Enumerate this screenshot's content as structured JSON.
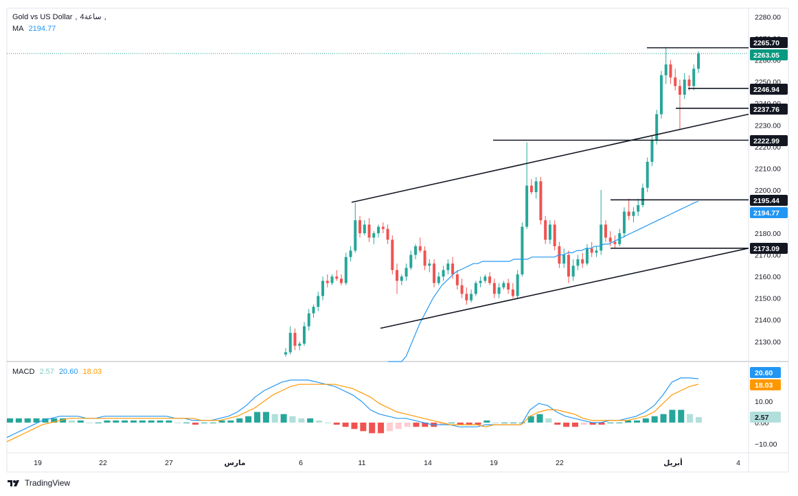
{
  "header": {
    "symbol": "Gold vs US Dollar",
    "interval": "4ساعة",
    "separator": ",",
    "ma_label": "MA",
    "ma_value": "2194.77"
  },
  "macd_legend": {
    "label": "MACD",
    "hist": "2.57",
    "macd": "20.60",
    "signal": "18.03"
  },
  "attribution": "TradingView",
  "colors": {
    "up": "#26a69a",
    "down": "#ef5350",
    "ma": "#2196f3",
    "macd_line": "#2196f3",
    "signal_line": "#ff9800",
    "hist_pos_strong": "#26a69a",
    "hist_pos_weak": "#b2dfdb",
    "hist_neg_strong": "#ef5350",
    "hist_neg_weak": "#ffcdd2",
    "tag_dark": "#131722",
    "last_price": "#089981"
  },
  "chart_data": [
    {
      "type": "candlestick",
      "title": "Gold vs US Dollar, 4ساعة",
      "ylim": [
        2120,
        2283
      ],
      "y_ticks": [
        2130,
        2140,
        2150,
        2160,
        2170,
        2180,
        2190,
        2200,
        2210,
        2220,
        2230,
        2240,
        2250,
        2260,
        2270,
        2280
      ],
      "x_ticks": [
        "19",
        "22",
        "27",
        "مارس",
        "6",
        "11",
        "14",
        "19",
        "22",
        "أبريل",
        "4"
      ],
      "price_tags": [
        "2265.70",
        "2263.05",
        "2246.94",
        "2237.76",
        "2222.99",
        "2195.44",
        "2194.77",
        "2173.09"
      ],
      "last_price": 2263.05,
      "ma_value": 2194.77,
      "horizontal_levels": [
        2265.7,
        2246.94,
        2237.76,
        2222.99,
        2195.44,
        2173.09
      ],
      "channel": {
        "upper": [
          [
            0,
            2194.3
          ],
          [
            1,
            2235
          ]
        ],
        "lower": [
          [
            0,
            2136.1
          ],
          [
            1,
            2173.09
          ]
        ]
      },
      "candles": [
        [
          2124,
          2127,
          2123,
          2125
        ],
        [
          2125,
          2137,
          2124,
          2134
        ],
        [
          2134,
          2136,
          2126,
          2128
        ],
        [
          2128,
          2130,
          2126,
          2129
        ],
        [
          2129,
          2139,
          2128,
          2137
        ],
        [
          2137,
          2145,
          2135,
          2143
        ],
        [
          2143,
          2147,
          2141,
          2146
        ],
        [
          2146,
          2153,
          2144,
          2151
        ],
        [
          2151,
          2160,
          2149,
          2158
        ],
        [
          2158,
          2161,
          2155,
          2157
        ],
        [
          2157,
          2161,
          2156,
          2160
        ],
        [
          2160,
          2163,
          2158,
          2159
        ],
        [
          2159,
          2161,
          2156,
          2157
        ],
        [
          2157,
          2171,
          2156,
          2169
        ],
        [
          2169,
          2174,
          2167,
          2172
        ],
        [
          2172,
          2194,
          2171,
          2186
        ],
        [
          2186,
          2188,
          2178,
          2180
        ],
        [
          2180,
          2186,
          2179,
          2184
        ],
        [
          2184,
          2187,
          2176,
          2178
        ],
        [
          2178,
          2181,
          2175,
          2180
        ],
        [
          2180,
          2184,
          2178,
          2183
        ],
        [
          2183,
          2185,
          2180,
          2182
        ],
        [
          2182,
          2184,
          2175,
          2177
        ],
        [
          2177,
          2179,
          2161,
          2163
        ],
        [
          2163,
          2166,
          2152,
          2158
        ],
        [
          2158,
          2161,
          2156,
          2160
        ],
        [
          2160,
          2166,
          2158,
          2164
        ],
        [
          2164,
          2172,
          2163,
          2170
        ],
        [
          2170,
          2175,
          2168,
          2174
        ],
        [
          2174,
          2178,
          2171,
          2172
        ],
        [
          2172,
          2174,
          2163,
          2165
        ],
        [
          2165,
          2168,
          2162,
          2166
        ],
        [
          2166,
          2168,
          2155,
          2157
        ],
        [
          2157,
          2162,
          2156,
          2160
        ],
        [
          2160,
          2165,
          2158,
          2163
        ],
        [
          2163,
          2168,
          2161,
          2166
        ],
        [
          2166,
          2169,
          2159,
          2161
        ],
        [
          2161,
          2163,
          2154,
          2156
        ],
        [
          2156,
          2159,
          2150,
          2152
        ],
        [
          2152,
          2155,
          2147,
          2149
        ],
        [
          2149,
          2154,
          2148,
          2152
        ],
        [
          2152,
          2158,
          2151,
          2157
        ],
        [
          2157,
          2160,
          2155,
          2158
        ],
        [
          2158,
          2161,
          2157,
          2160
        ],
        [
          2160,
          2162,
          2156,
          2157
        ],
        [
          2157,
          2159,
          2150,
          2152
        ],
        [
          2152,
          2157,
          2150,
          2155
        ],
        [
          2155,
          2158,
          2154,
          2157
        ],
        [
          2157,
          2159,
          2152,
          2154
        ],
        [
          2154,
          2157,
          2150,
          2151
        ],
        [
          2151,
          2163,
          2150,
          2161
        ],
        [
          2161,
          2185,
          2160,
          2183
        ],
        [
          2183,
          2222,
          2182,
          2202
        ],
        [
          2202,
          2205,
          2198,
          2199
        ],
        [
          2199,
          2206,
          2196,
          2204
        ],
        [
          2204,
          2206,
          2184,
          2186
        ],
        [
          2186,
          2188,
          2175,
          2177
        ],
        [
          2177,
          2186,
          2175,
          2184
        ],
        [
          2184,
          2186,
          2172,
          2174
        ],
        [
          2174,
          2176,
          2164,
          2166
        ],
        [
          2166,
          2173,
          2164,
          2170
        ],
        [
          2170,
          2172,
          2157,
          2160
        ],
        [
          2160,
          2168,
          2158,
          2165
        ],
        [
          2165,
          2170,
          2163,
          2168
        ],
        [
          2168,
          2171,
          2164,
          2166
        ],
        [
          2166,
          2175,
          2165,
          2173
        ],
        [
          2173,
          2176,
          2169,
          2171
        ],
        [
          2171,
          2174,
          2169,
          2172
        ],
        [
          2172,
          2200,
          2170,
          2184
        ],
        [
          2184,
          2186,
          2176,
          2178
        ],
        [
          2178,
          2181,
          2174,
          2176
        ],
        [
          2176,
          2179,
          2173,
          2175
        ],
        [
          2175,
          2182,
          2174,
          2180
        ],
        [
          2180,
          2192,
          2178,
          2190
        ],
        [
          2190,
          2196,
          2186,
          2188
        ],
        [
          2188,
          2192,
          2185,
          2190
        ],
        [
          2190,
          2196,
          2188,
          2193
        ],
        [
          2193,
          2203,
          2192,
          2201
        ],
        [
          2201,
          2215,
          2199,
          2213
        ],
        [
          2213,
          2225,
          2211,
          2223
        ],
        [
          2223,
          2237,
          2221,
          2235
        ],
        [
          2235,
          2255,
          2233,
          2253
        ],
        [
          2253,
          2266,
          2249,
          2258
        ],
        [
          2258,
          2260,
          2249,
          2252
        ],
        [
          2252,
          2256,
          2246,
          2248
        ],
        [
          2248,
          2251,
          2228,
          2244
        ],
        [
          2244,
          2254,
          2242,
          2251
        ],
        [
          2251,
          2253,
          2246,
          2248
        ],
        [
          2248,
          2258,
          2246,
          2256
        ],
        [
          2256,
          2264,
          2254,
          2263
        ]
      ],
      "ma_series": [
        2100,
        2105,
        2111,
        2117,
        2123,
        2128,
        2133,
        2138,
        2142,
        2146,
        2150,
        2153,
        2156,
        2158,
        2160,
        2162,
        2163,
        2164,
        2165,
        2166,
        2166,
        2167,
        2167,
        2167,
        2167,
        2167,
        2167,
        2167,
        2168,
        2168,
        2168,
        2168,
        2169,
        2169,
        2169,
        2169,
        2169,
        2169,
        2170,
        2170,
        2171,
        2171,
        2172,
        2172,
        2173,
        2173,
        2174,
        2174,
        2175,
        2175,
        2176,
        2177,
        2178,
        2179,
        2180,
        2181,
        2182,
        2183,
        2184,
        2185,
        2186,
        2187,
        2188,
        2189,
        2190,
        2191,
        2192,
        2193,
        2194,
        2194.77
      ]
    },
    {
      "type": "macd",
      "title": "MACD",
      "ylim": [
        -14,
        24
      ],
      "y_ticks": [
        -10,
        0,
        10
      ],
      "y_tick_labels": [
        "−10.00",
        "0.00",
        "10.00"
      ],
      "macd": [
        -7,
        -5,
        -3,
        -1,
        1,
        2,
        3,
        3,
        3,
        2,
        2,
        3,
        3,
        3,
        3,
        3,
        3,
        3,
        3,
        2,
        2,
        1,
        1,
        1,
        2,
        3,
        5,
        8,
        12,
        15,
        17,
        19,
        20,
        20,
        20,
        19,
        18,
        17,
        15,
        13,
        10,
        6,
        4,
        3,
        2,
        2,
        1,
        0,
        -1,
        -1,
        -1,
        -2,
        -2,
        -2,
        -1,
        -1,
        -1,
        -1,
        -1,
        6,
        9,
        8,
        5,
        3,
        2,
        1,
        0,
        0,
        1,
        1,
        2,
        3,
        5,
        8,
        13,
        19,
        21,
        21,
        20.6
      ],
      "signal": [
        -9,
        -7,
        -5,
        -3,
        -1,
        0,
        1,
        2,
        2,
        2,
        2,
        2,
        2,
        2,
        2,
        2,
        2,
        2,
        2,
        2,
        2,
        2,
        1,
        1,
        1,
        2,
        3,
        5,
        7,
        10,
        13,
        15,
        17,
        18,
        18,
        18,
        18,
        18,
        17,
        16,
        14,
        12,
        9,
        7,
        5,
        4,
        3,
        2,
        1,
        0,
        -1,
        -1,
        -1,
        -1,
        -2,
        -1,
        -1,
        -1,
        -1,
        3,
        5,
        6,
        6,
        5,
        4,
        2,
        1,
        1,
        1,
        1,
        1,
        2,
        3,
        5,
        9,
        13,
        15,
        17,
        18.03
      ],
      "histogram": [
        2,
        2,
        2,
        2,
        2,
        2,
        2,
        1,
        1,
        0,
        0,
        1,
        1,
        1,
        1,
        1,
        1,
        1,
        1,
        0,
        0,
        -1,
        0,
        0,
        1,
        1,
        2,
        3,
        5,
        5,
        4,
        4,
        3,
        2,
        2,
        1,
        0,
        -1,
        -2,
        -3,
        -4,
        -5,
        -5,
        -4,
        -3,
        -2,
        -2,
        -2,
        -2,
        -1,
        0,
        -1,
        -1,
        -1,
        1,
        0,
        0,
        0,
        0,
        3,
        4,
        2,
        -1,
        -2,
        -2,
        -1,
        -1,
        -1,
        0,
        0,
        1,
        1,
        2,
        3,
        4,
        6,
        6,
        4,
        2.57
      ]
    }
  ]
}
